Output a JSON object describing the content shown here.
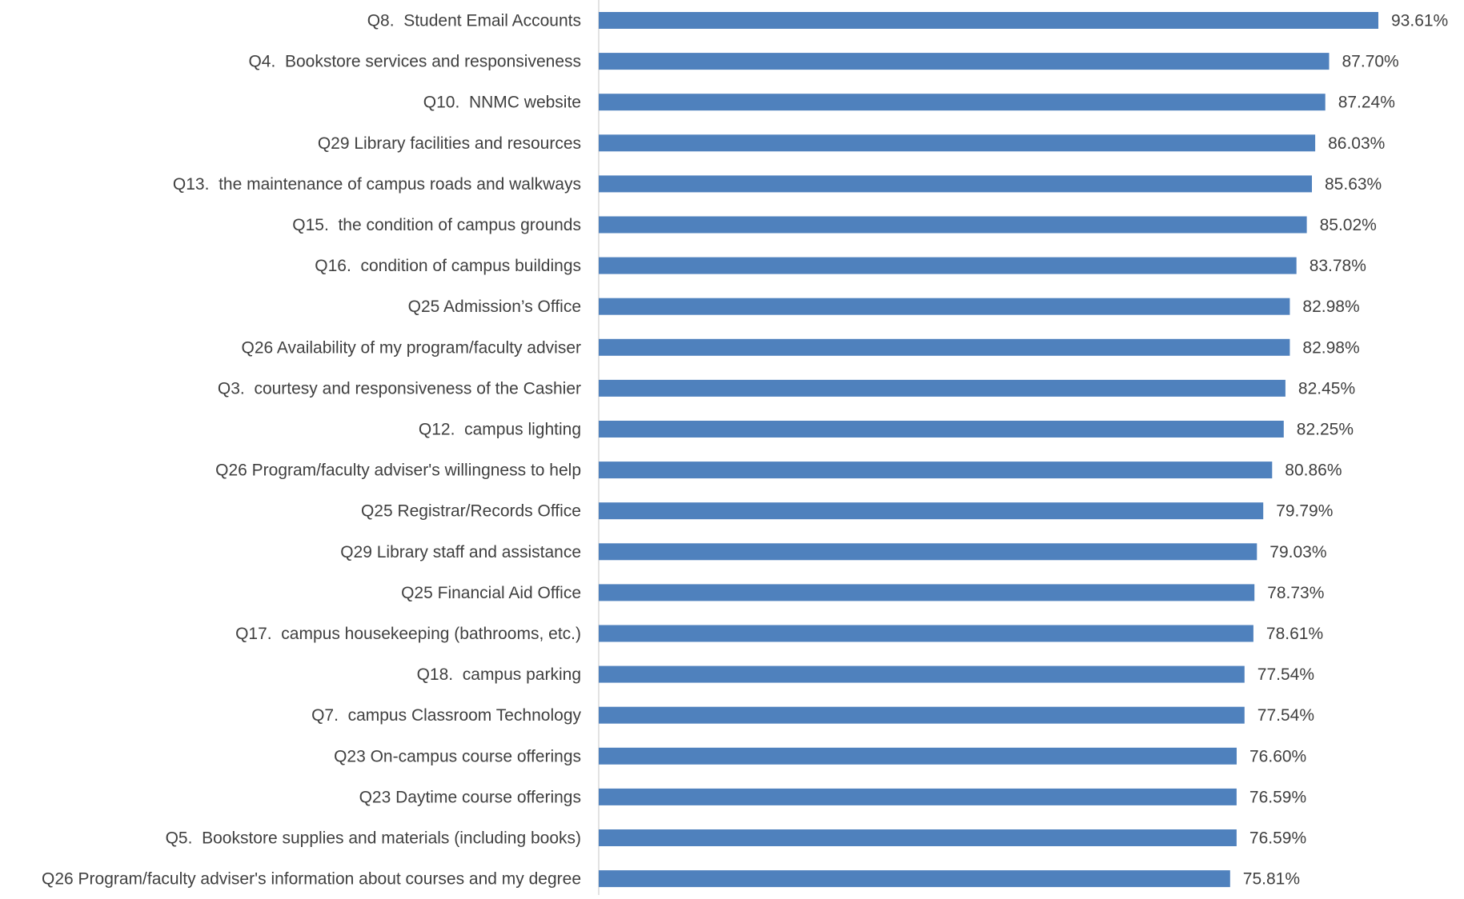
{
  "chart_data": {
    "type": "bar",
    "orientation": "horizontal",
    "categories": [
      "Q8.  Student Email Accounts",
      "Q4.  Bookstore services and responsiveness",
      "Q10.  NNMC website",
      "Q29 Library facilities and resources",
      "Q13.  the maintenance of campus roads and walkways",
      "Q15.  the condition of campus grounds",
      "Q16.  condition of campus buildings",
      "Q25 Admission’s Office",
      "Q26 Availability of my program/faculty adviser",
      "Q3.  courtesy and responsiveness of the Cashier",
      "Q12.  campus lighting",
      "Q26 Program/faculty adviser's willingness to help",
      "Q25 Registrar/Records Office",
      "Q29 Library staff and assistance",
      "Q25 Financial Aid Office",
      "Q17.  campus housekeeping (bathrooms, etc.)",
      "Q18.  campus parking",
      "Q7.  campus Classroom Technology",
      "Q23 On-campus course offerings",
      "Q23 Daytime course offerings",
      "Q5.  Bookstore supplies and materials (including books)",
      "Q26 Program/faculty adviser's information about courses and my degree"
    ],
    "values": [
      93.61,
      87.7,
      87.24,
      86.03,
      85.63,
      85.02,
      83.78,
      82.98,
      82.98,
      82.45,
      82.25,
      80.86,
      79.79,
      79.03,
      78.73,
      78.61,
      77.54,
      77.54,
      76.6,
      76.59,
      76.59,
      75.81
    ],
    "value_labels": [
      "93.61%",
      "87.70%",
      "87.24%",
      "86.03%",
      "85.63%",
      "85.02%",
      "83.78%",
      "82.98%",
      "82.98%",
      "82.45%",
      "82.25%",
      "80.86%",
      "79.79%",
      "79.03%",
      "78.73%",
      "78.61%",
      "77.54%",
      "77.54%",
      "76.60%",
      "76.59%",
      "76.59%",
      "75.81%"
    ],
    "xlim": [
      0,
      100
    ],
    "grid": false,
    "legend": "none",
    "bar_color": "#4f81bd",
    "axis_color": "#d9d9d9",
    "label_color": "#404040"
  }
}
